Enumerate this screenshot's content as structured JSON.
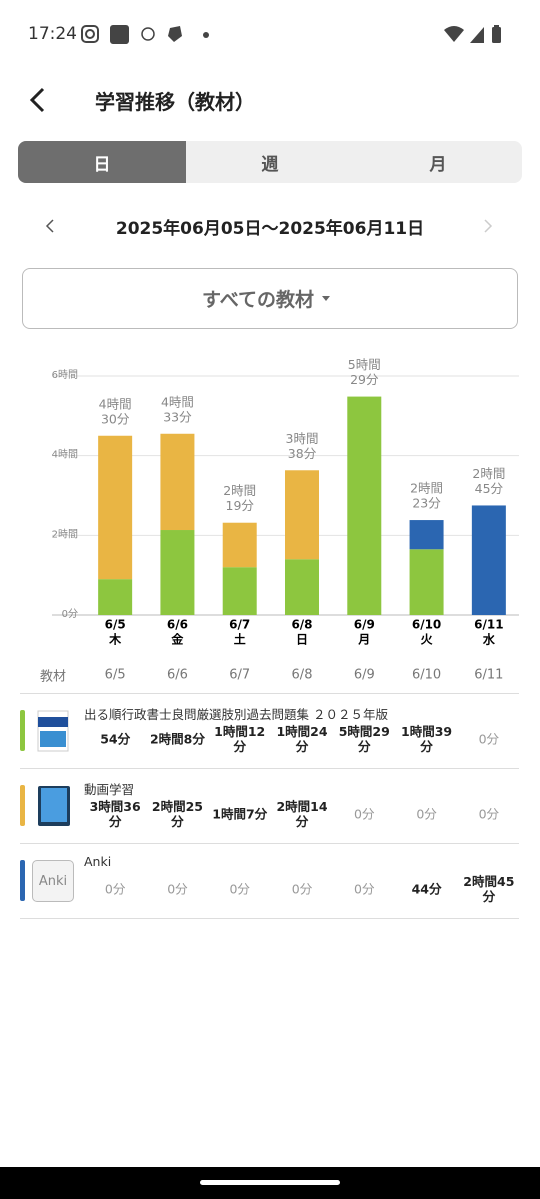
{
  "status_bar": {
    "time": "17:24"
  },
  "header": {
    "title": "学習推移（教材）"
  },
  "tabs": [
    "日",
    "週",
    "月"
  ],
  "selected_tab": 0,
  "date_range": "2025年06月05日〜2025年06月11日",
  "dropdown": "すべての教材",
  "chart_data": {
    "type": "bar",
    "stacked": true,
    "categories": [
      "6/5",
      "6/6",
      "6/7",
      "6/8",
      "6/9",
      "6/10",
      "6/11"
    ],
    "weekdays": [
      "木",
      "金",
      "土",
      "日",
      "月",
      "火",
      "水"
    ],
    "series": [
      {
        "color": "#8dc63f",
        "values": [
          0.9,
          2.1333,
          1.2,
          1.4,
          5.4833,
          1.65,
          0
        ]
      },
      {
        "color": "#e9b544",
        "values": [
          3.6,
          2.4167,
          1.1167,
          2.2333,
          0,
          0,
          0
        ]
      },
      {
        "color": "#2b66b1",
        "values": [
          0,
          0,
          0,
          0,
          0,
          0.7333,
          2.75
        ]
      }
    ],
    "totals": [
      4.5,
      4.55,
      2.3167,
      3.6333,
      5.4833,
      2.3833,
      2.75
    ],
    "total_labels": [
      [
        "4時間",
        "30分"
      ],
      [
        "4時間",
        "33分"
      ],
      [
        "2時間",
        "19分"
      ],
      [
        "3時間",
        "38分"
      ],
      [
        "5時間",
        "29分"
      ],
      [
        "2時間",
        "23分"
      ],
      [
        "2時間",
        "45分"
      ]
    ],
    "ylim": [
      0,
      6
    ],
    "yticks": [
      {
        "value": 0,
        "label": "0分"
      },
      {
        "value": 2,
        "label": "2時間"
      },
      {
        "value": 4,
        "label": "4時間"
      },
      {
        "value": 6,
        "label": "6時間"
      }
    ],
    "grid": true
  },
  "table": {
    "header": [
      "教材",
      "6/5",
      "6/6",
      "6/7",
      "6/8",
      "6/9",
      "6/10",
      "6/11"
    ],
    "rows": [
      {
        "name": "出る順行政書士良問厳選肢別過去問題集 ２０２５年版",
        "cells": [
          "54分",
          "2時間8分",
          "1時間12分",
          "1時間24分",
          "5時間29分",
          "1時間39分",
          "0分"
        ]
      },
      {
        "name": "動画学習",
        "cells": [
          "3時間36分",
          "2時間25分",
          "1時間7分",
          "2時間14分",
          "0分",
          "0分",
          "0分"
        ]
      },
      {
        "name": "Anki",
        "icon_text": "Anki",
        "cells": [
          "0分",
          "0分",
          "0分",
          "0分",
          "0分",
          "44分",
          "2時間45分"
        ]
      }
    ]
  }
}
